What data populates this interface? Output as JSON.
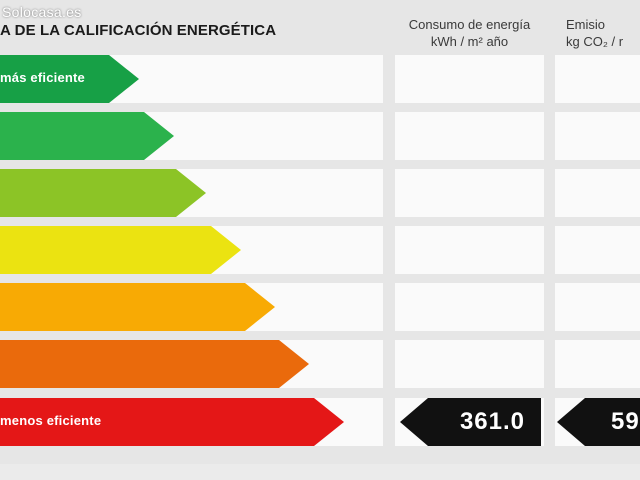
{
  "watermark": "Solocasa.es",
  "header": {
    "title": "A DE LA CALIFICACIÓN ENERGÉTICA",
    "energy_col_line1": "Consumo de energía",
    "energy_col_line2": "kWh / m² año",
    "emission_col_line1": "Emisio",
    "emission_col_line2": "kg CO₂ / r"
  },
  "rows": [
    {
      "label": "más eficiente",
      "color": "#17a046"
    },
    {
      "label": "",
      "color": "#2bb24c"
    },
    {
      "label": "",
      "color": "#8cc426"
    },
    {
      "label": "",
      "color": "#ebe311"
    },
    {
      "label": "",
      "color": "#f8aa04"
    },
    {
      "label": "",
      "color": "#ea6a0c"
    },
    {
      "label": "menos eficiente",
      "color": "#e41717"
    }
  ],
  "values": {
    "energy": "361.0",
    "emission": "59"
  }
}
